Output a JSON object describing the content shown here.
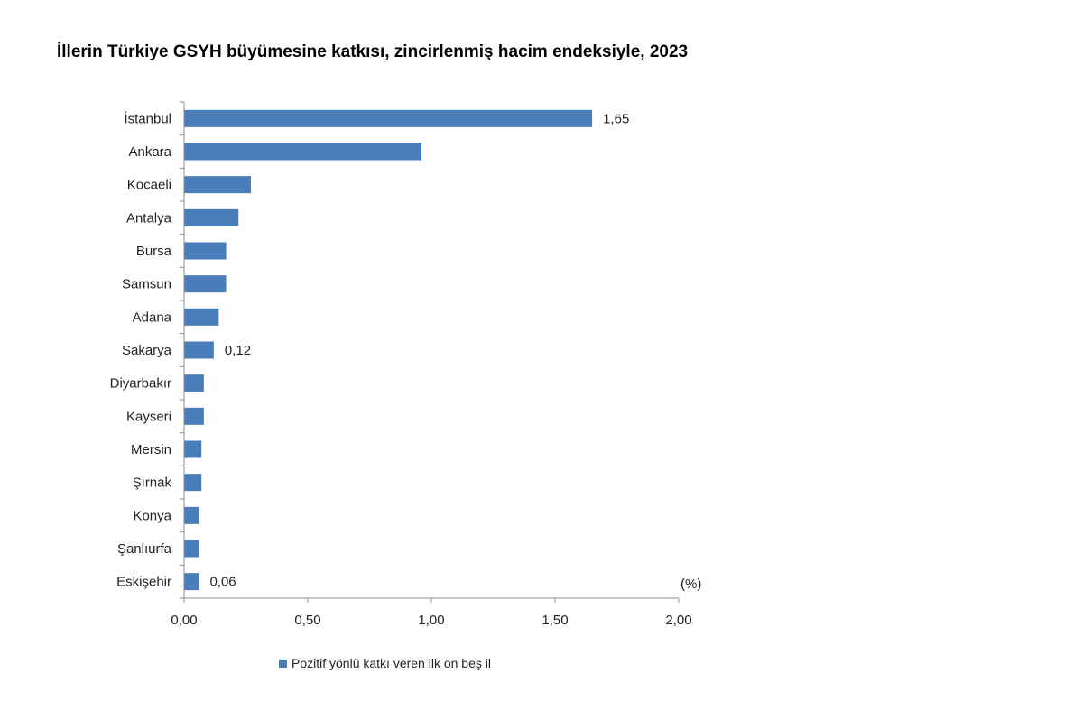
{
  "chart_data": {
    "type": "bar",
    "orientation": "horizontal",
    "title": "İllerin Türkiye GSYH büyümesine katkısı, zincirlenmiş hacim endeksiyle, 2023",
    "unit_label": "(%)",
    "categories": [
      "İstanbul",
      "Ankara",
      "Kocaeli",
      "Antalya",
      "Bursa",
      "Samsun",
      "Adana",
      "Sakarya",
      "Diyarbakır",
      "Kayseri",
      "Mersin",
      "Şırnak",
      "Konya",
      "Şanlıurfa",
      "Eskişehir"
    ],
    "series": [
      {
        "name": "Pozitif yönlü katkı veren ilk on beş il",
        "values": [
          1.65,
          0.96,
          0.27,
          0.22,
          0.17,
          0.17,
          0.14,
          0.12,
          0.08,
          0.08,
          0.07,
          0.07,
          0.06,
          0.06,
          0.06
        ],
        "color": "#4a7ebb"
      }
    ],
    "data_labels": [
      {
        "category": "İstanbul",
        "text": "1,65"
      },
      {
        "category": "Sakarya",
        "text": "0,12"
      },
      {
        "category": "Eskişehir",
        "text": "0,06"
      }
    ],
    "xlim": [
      0,
      2.0
    ],
    "x_ticks": [
      {
        "value": 0,
        "label": "0,00"
      },
      {
        "value": 0.5,
        "label": "0,50"
      },
      {
        "value": 1.0,
        "label": "1,00"
      },
      {
        "value": 1.5,
        "label": "1,50"
      },
      {
        "value": 2.0,
        "label": "2,00"
      }
    ],
    "grid": false,
    "legend_position": "bottom"
  }
}
